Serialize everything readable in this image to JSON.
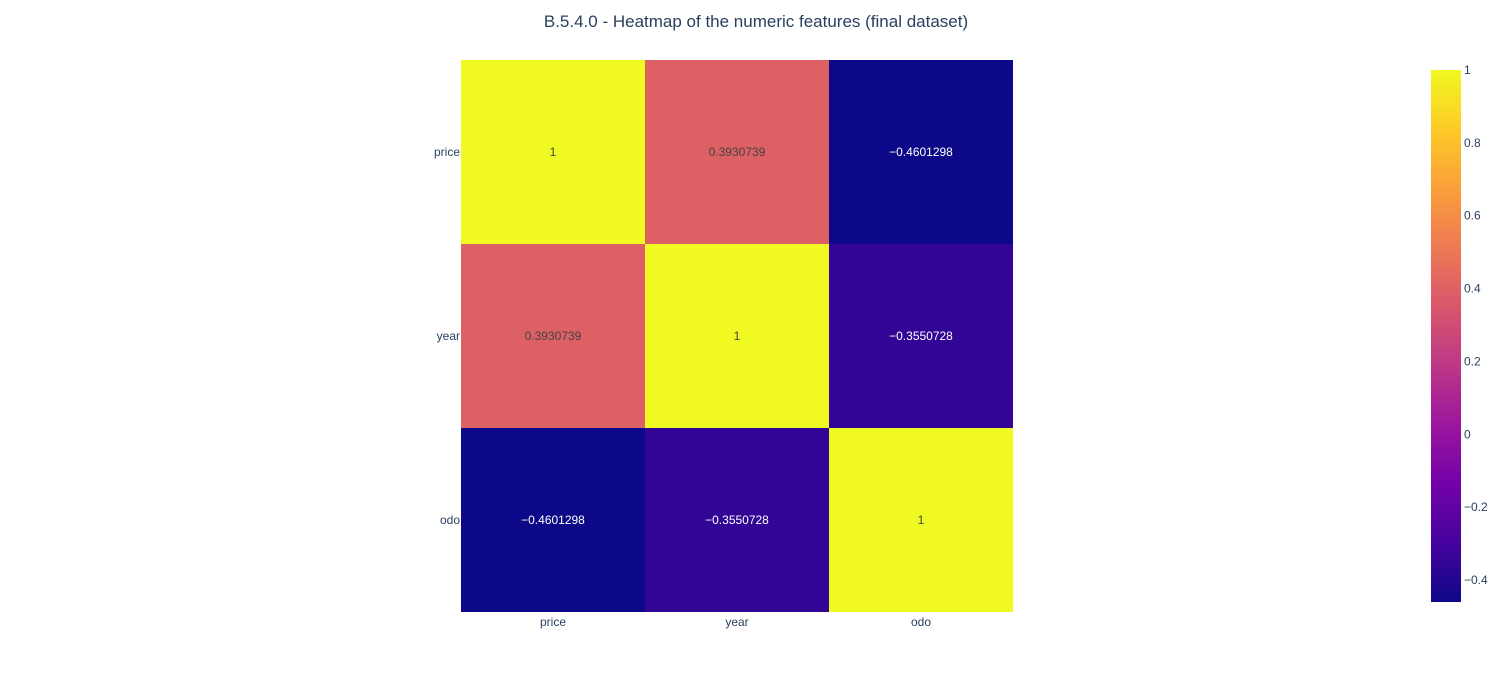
{
  "chart_data": {
    "type": "heatmap",
    "title": "B.5.4.0 - Heatmap of the numeric features (final dataset)",
    "x": [
      "price",
      "year",
      "odo"
    ],
    "y": [
      "price",
      "year",
      "odo"
    ],
    "z": [
      [
        1,
        0.3930739,
        -0.4601298
      ],
      [
        0.3930739,
        1,
        -0.3550728
      ],
      [
        -0.4601298,
        -0.3550728,
        1
      ]
    ],
    "z_labels": [
      [
        "1",
        "0.3930739",
        "−0.4601298"
      ],
      [
        "0.3930739",
        "1",
        "−0.3550728"
      ],
      [
        "−0.4601298",
        "−0.3550728",
        "1"
      ]
    ],
    "zmin": -0.4601298,
    "zmax": 1,
    "colorscale": "plasma",
    "colorbar": {
      "ticks": [
        1,
        0.8,
        0.6,
        0.4,
        0.2,
        0,
        -0.2,
        -0.4
      ],
      "tick_labels": [
        "1",
        "0.8",
        "0.6",
        "0.4",
        "0.2",
        "0",
        "−0.2",
        "−0.4"
      ]
    },
    "legend": "colorbar-right"
  }
}
